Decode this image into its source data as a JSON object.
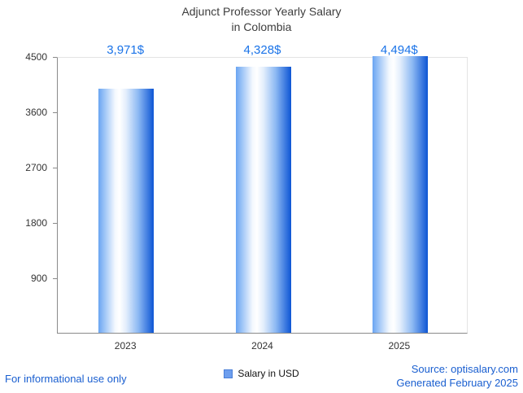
{
  "title": {
    "line1": "Adjunct Professor Yearly Salary",
    "line2": "in Colombia"
  },
  "chart_data": {
    "type": "bar",
    "title": "Adjunct Professor Yearly Salary in Colombia",
    "categories": [
      "2023",
      "2024",
      "2025"
    ],
    "values": [
      3971,
      4328,
      4494
    ],
    "value_labels": [
      "3,971$",
      "4,328$",
      "4,494$"
    ],
    "xlabel": "",
    "ylabel": "",
    "ylim": [
      0,
      4500
    ],
    "yticks": [
      900,
      1800,
      2700,
      3600,
      4500
    ],
    "grid": false,
    "legend_position": "bottom-center",
    "legend_label": "Salary in USD",
    "bar_gradient_stops": [
      [
        "#6aa5f2",
        "0%"
      ],
      [
        "#f3f8fe",
        "30%"
      ],
      [
        "#ffffff",
        "38%"
      ],
      [
        "#e3eefc",
        "50%"
      ],
      [
        "#8db9f3",
        "72%"
      ],
      [
        "#0d55d4",
        "100%"
      ]
    ]
  },
  "legend": {
    "label": "Salary in USD"
  },
  "footer": {
    "disclaimer": "For informational use only",
    "source": "Source: optisalary.com",
    "generated": "Generated February 2025"
  },
  "colors": {
    "value_label": "#1a73e8",
    "link": "#1a5fd0",
    "title": "#3d3d3d",
    "axis": "#8a8a8a",
    "legend_swatch": "#6d9eee"
  }
}
